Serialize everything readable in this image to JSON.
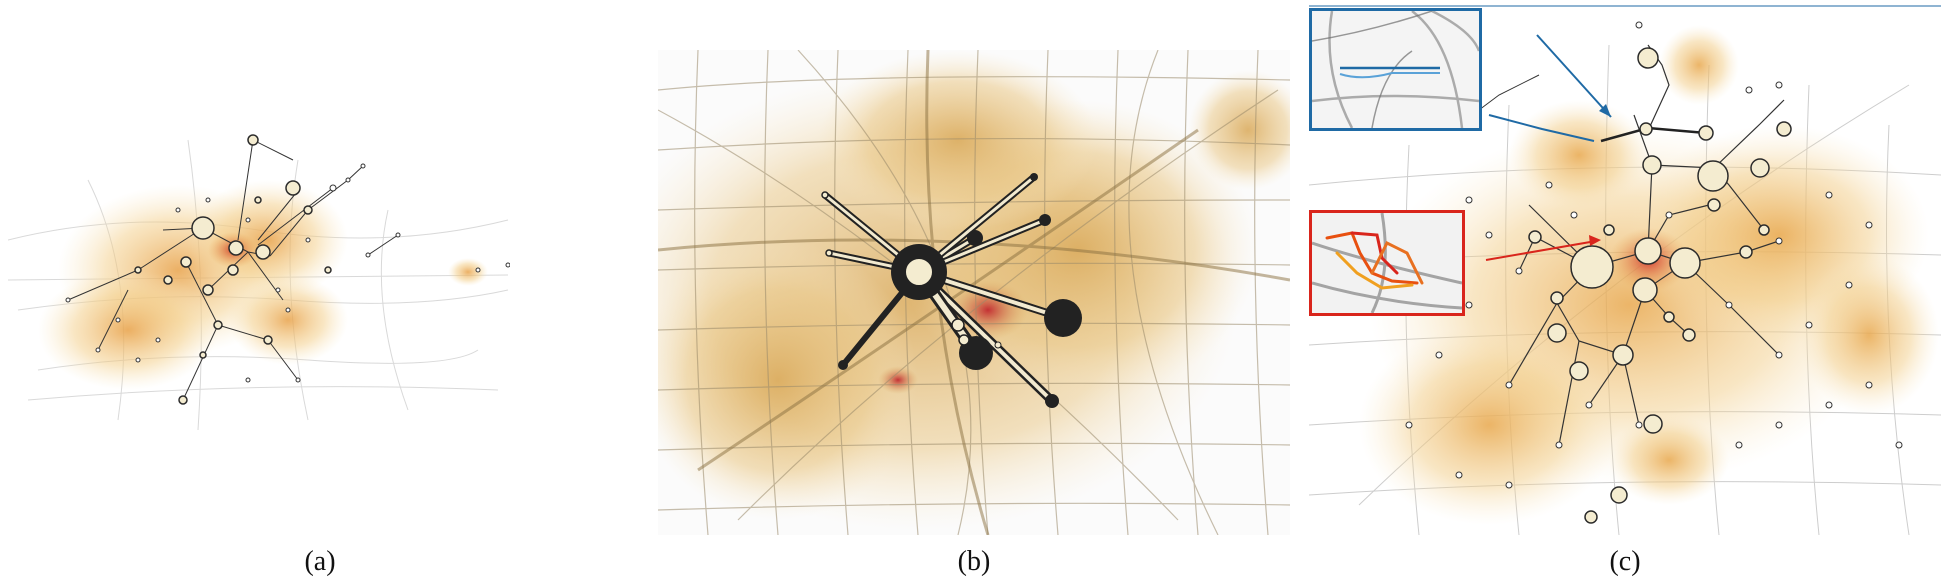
{
  "captions": {
    "a": "(a)",
    "b": "(b)",
    "c": "(c)"
  },
  "colors": {
    "heat_low": "#f5d9a0",
    "heat_mid": "#e6b060",
    "heat_high": "#d2402a",
    "road": "#9a9a9a",
    "node_fill": "#f4ecd0",
    "node_stroke": "#2b2b2b",
    "hub_dark": "#2a2a2a",
    "inset_blue": "#1f6aa5",
    "inset_red": "#d9251c",
    "trail_orange": "#f0a020"
  },
  "icons": {
    "blue_inset": "trajectory-inset-blue",
    "red_inset": "trajectory-inset-red",
    "blue_arrow": "pointer-arrow-blue",
    "red_arrow": "pointer-arrow-red"
  }
}
